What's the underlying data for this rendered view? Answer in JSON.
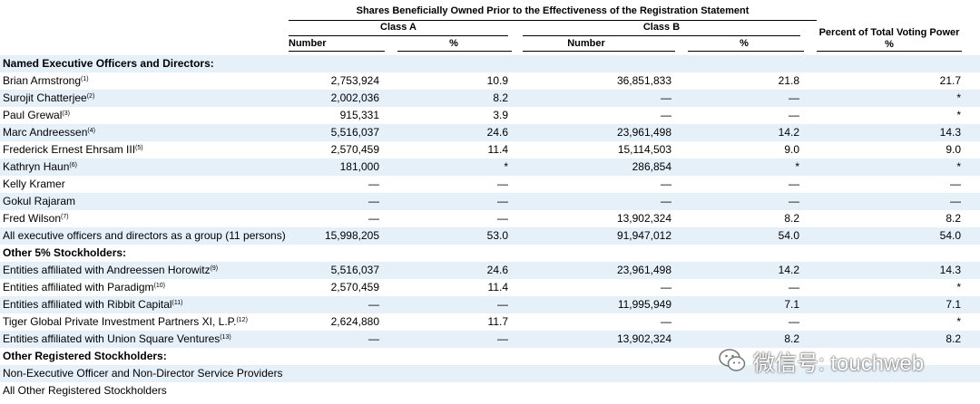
{
  "header": {
    "group_title": "Shares Beneficially Owned Prior to the Effectiveness of the Registration Statement",
    "class_a": "Class A",
    "class_b": "Class B",
    "voting_title": "Percent of Total Voting Power",
    "voting_pct": "%",
    "number": "Number",
    "pct": "%"
  },
  "rows": [
    {
      "name": "Named Executive Officers and Directors:",
      "sup": "",
      "a_num": "",
      "a_pct": "",
      "b_num": "",
      "b_pct": "",
      "vote": "",
      "section": true,
      "shaded": true
    },
    {
      "name": "Brian Armstrong",
      "sup": "(1)",
      "a_num": "2,753,924",
      "a_pct": "10.9",
      "b_num": "36,851,833",
      "b_pct": "21.8",
      "vote": "21.7",
      "section": false,
      "shaded": false
    },
    {
      "name": "Surojit Chatterjee",
      "sup": "(2)",
      "a_num": "2,002,036",
      "a_pct": "8.2",
      "b_num": "—",
      "b_pct": "—",
      "vote": "*",
      "section": false,
      "shaded": true
    },
    {
      "name": "Paul Grewal",
      "sup": "(3)",
      "a_num": "915,331",
      "a_pct": "3.9",
      "b_num": "—",
      "b_pct": "—",
      "vote": "*",
      "section": false,
      "shaded": false
    },
    {
      "name": "Marc Andreessen",
      "sup": "(4)",
      "a_num": "5,516,037",
      "a_pct": "24.6",
      "b_num": "23,961,498",
      "b_pct": "14.2",
      "vote": "14.3",
      "section": false,
      "shaded": true
    },
    {
      "name": "Frederick Ernest Ehrsam III",
      "sup": "(5)",
      "a_num": "2,570,459",
      "a_pct": "11.4",
      "b_num": "15,114,503",
      "b_pct": "9.0",
      "vote": "9.0",
      "section": false,
      "shaded": false
    },
    {
      "name": "Kathryn Haun",
      "sup": "(6)",
      "a_num": "181,000",
      "a_pct": "*",
      "b_num": "286,854",
      "b_pct": "*",
      "vote": "*",
      "section": false,
      "shaded": true
    },
    {
      "name": "Kelly Kramer",
      "sup": "",
      "a_num": "—",
      "a_pct": "—",
      "b_num": "—",
      "b_pct": "—",
      "vote": "—",
      "section": false,
      "shaded": false
    },
    {
      "name": "Gokul Rajaram",
      "sup": "",
      "a_num": "—",
      "a_pct": "—",
      "b_num": "—",
      "b_pct": "—",
      "vote": "—",
      "section": false,
      "shaded": true
    },
    {
      "name": "Fred Wilson",
      "sup": "(7)",
      "a_num": "—",
      "a_pct": "—",
      "b_num": "13,902,324",
      "b_pct": "8.2",
      "vote": "8.2",
      "section": false,
      "shaded": false
    },
    {
      "name": "All executive officers and directors as a group (11 persons)",
      "sup": "",
      "a_num": "15,998,205",
      "a_pct": "53.0",
      "b_num": "91,947,012",
      "b_pct": "54.0",
      "vote": "54.0",
      "section": false,
      "shaded": true
    },
    {
      "name": "Other 5% Stockholders:",
      "sup": "",
      "a_num": "",
      "a_pct": "",
      "b_num": "",
      "b_pct": "",
      "vote": "",
      "section": true,
      "shaded": false
    },
    {
      "name": "Entities affiliated with Andreessen Horowitz",
      "sup": "(9)",
      "a_num": "5,516,037",
      "a_pct": "24.6",
      "b_num": "23,961,498",
      "b_pct": "14.2",
      "vote": "14.3",
      "section": false,
      "shaded": true
    },
    {
      "name": "Entities affiliated with Paradigm",
      "sup": "(10)",
      "a_num": "2,570,459",
      "a_pct": "11.4",
      "b_num": "—",
      "b_pct": "—",
      "vote": "*",
      "section": false,
      "shaded": false
    },
    {
      "name": "Entities affiliated with Ribbit Capital",
      "sup": "(11)",
      "a_num": "—",
      "a_pct": "—",
      "b_num": "11,995,949",
      "b_pct": "7.1",
      "vote": "7.1",
      "section": false,
      "shaded": true
    },
    {
      "name": "Tiger Global Private Investment Partners XI, L.P.",
      "sup": "(12)",
      "a_num": "2,624,880",
      "a_pct": "11.7",
      "b_num": "—",
      "b_pct": "—",
      "vote": "*",
      "section": false,
      "shaded": false
    },
    {
      "name": "Entities affiliated with Union Square Ventures",
      "sup": "(13)",
      "a_num": "—",
      "a_pct": "—",
      "b_num": "13,902,324",
      "b_pct": "8.2",
      "vote": "8.2",
      "section": false,
      "shaded": true
    },
    {
      "name": "Other Registered Stockholders:",
      "sup": "",
      "a_num": "",
      "a_pct": "",
      "b_num": "",
      "b_pct": "",
      "vote": "",
      "section": true,
      "shaded": false
    },
    {
      "name": "Non-Executive Officer and Non-Director Service Providers",
      "sup": "",
      "a_num": "",
      "a_pct": "",
      "b_num": "",
      "b_pct": "",
      "vote": "",
      "section": false,
      "shaded": true
    },
    {
      "name": "All Other Registered Stockholders",
      "sup": "",
      "a_num": "",
      "a_pct": "",
      "b_num": "",
      "b_pct": "",
      "vote": "",
      "section": false,
      "shaded": false
    }
  ],
  "watermark": {
    "icon": "wechat-icon",
    "text": "微信号: touchweb"
  }
}
